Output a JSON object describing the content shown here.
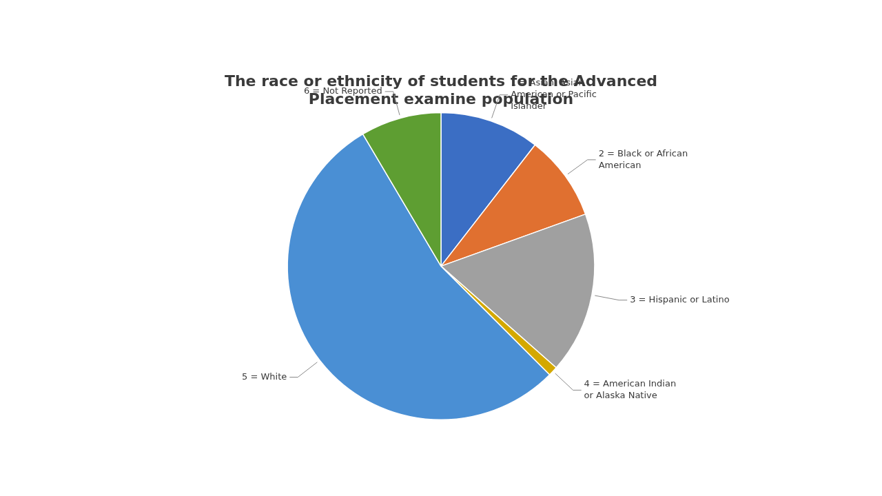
{
  "chart_data": {
    "type": "pie",
    "title": "The race or ethnicity of students for the Advanced\nPlacement examine population",
    "categories": [
      "1 = Asian, Asian\nAmerican or Pacific\nIslander",
      "2 = Black or African\nAmerican",
      "3 = Hispanic or Latino",
      "4 = American Indian\nor Alaska Native",
      "5 = White",
      "6 = Not Reported"
    ],
    "values": [
      10.5,
      9.0,
      17.0,
      1.0,
      54.0,
      8.5
    ],
    "colors": [
      "#3B6EC4",
      "#E07030",
      "#A0A0A0",
      "#D4A800",
      "#4A8FD4",
      "#5E9E32"
    ]
  }
}
